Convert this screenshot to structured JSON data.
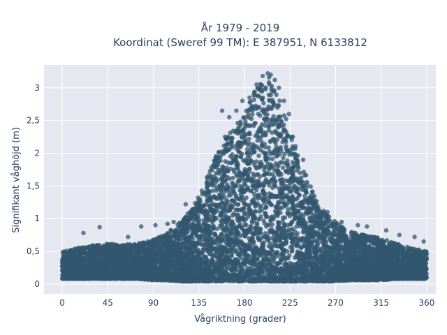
{
  "chart_data": {
    "type": "scatter",
    "title_lines": [
      "År 1979 - 2019",
      "Koordinat (Sweref 99 TM): E 387951, N 6133812"
    ],
    "xlabel": "Vågriktning (grader)",
    "ylabel": "Signifikant våghöjd (m)",
    "xlim": [
      -18,
      369
    ],
    "ylim": [
      -0.15,
      3.35
    ],
    "x_ticks": [
      0,
      45,
      90,
      135,
      180,
      225,
      270,
      315,
      360
    ],
    "x_tick_labels": [
      "0",
      "45",
      "90",
      "135",
      "180",
      "225",
      "270",
      "315",
      "360"
    ],
    "y_ticks": [
      0,
      0.5,
      1,
      1.5,
      2,
      2.5,
      3
    ],
    "y_tick_labels": [
      "0",
      "0,5",
      "1",
      "1,5",
      "2",
      "2,5",
      "3"
    ],
    "grid": true,
    "colors": {
      "marker": "#33576f",
      "plot_background": "#e5e8f0",
      "grid": "#ffffff",
      "text": "#2a3f5f"
    },
    "envelope": {
      "x": [
        0,
        15,
        30,
        45,
        60,
        75,
        90,
        100,
        110,
        120,
        130,
        140,
        150,
        160,
        170,
        180,
        190,
        200,
        205,
        210,
        215,
        225,
        235,
        245,
        255,
        265,
        275,
        285,
        300,
        315,
        330,
        345,
        360
      ],
      "upper": [
        0.5,
        0.55,
        0.6,
        0.62,
        0.6,
        0.62,
        0.68,
        0.75,
        0.85,
        1.0,
        1.2,
        1.5,
        1.95,
        2.25,
        2.4,
        2.6,
        2.95,
        3.15,
        3.2,
        3.05,
        2.8,
        2.4,
        1.9,
        1.5,
        1.2,
        1.0,
        0.9,
        0.8,
        0.75,
        0.7,
        0.62,
        0.55,
        0.5
      ],
      "lower": [
        0.08,
        0.08,
        0.08,
        0.08,
        0.08,
        0.08,
        0.06,
        0.06,
        0.05,
        0.04,
        0.04,
        0.04,
        0.04,
        0.04,
        0.04,
        0.04,
        0.04,
        0.04,
        0.04,
        0.04,
        0.04,
        0.04,
        0.04,
        0.04,
        0.04,
        0.04,
        0.05,
        0.06,
        0.06,
        0.06,
        0.08,
        0.08,
        0.08
      ]
    },
    "outliers": [
      {
        "x": 37,
        "y": 0.87
      },
      {
        "x": 21,
        "y": 0.78
      },
      {
        "x": 65,
        "y": 0.72
      },
      {
        "x": 78,
        "y": 0.88
      },
      {
        "x": 92,
        "y": 0.9
      },
      {
        "x": 104,
        "y": 0.92
      },
      {
        "x": 110,
        "y": 0.95
      },
      {
        "x": 122,
        "y": 1.22
      },
      {
        "x": 158,
        "y": 2.65
      },
      {
        "x": 165,
        "y": 2.55
      },
      {
        "x": 172,
        "y": 2.65
      },
      {
        "x": 178,
        "y": 2.8
      },
      {
        "x": 185,
        "y": 2.85
      },
      {
        "x": 192,
        "y": 3.05
      },
      {
        "x": 198,
        "y": 3.18
      },
      {
        "x": 203,
        "y": 3.22
      },
      {
        "x": 206,
        "y": 3.2
      },
      {
        "x": 210,
        "y": 3.12
      },
      {
        "x": 214,
        "y": 3.0
      },
      {
        "x": 219,
        "y": 2.8
      },
      {
        "x": 224,
        "y": 2.6
      },
      {
        "x": 238,
        "y": 1.9
      },
      {
        "x": 262,
        "y": 1.1
      },
      {
        "x": 276,
        "y": 0.95
      },
      {
        "x": 292,
        "y": 0.9
      },
      {
        "x": 301,
        "y": 0.88
      },
      {
        "x": 320,
        "y": 0.82
      },
      {
        "x": 333,
        "y": 0.75
      },
      {
        "x": 348,
        "y": 0.72
      },
      {
        "x": 357,
        "y": 0.65
      }
    ]
  }
}
